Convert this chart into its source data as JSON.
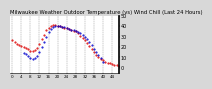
{
  "title": "Milwaukee Weather Outdoor Temperature (vs) Wind Chill (Last 24 Hours)",
  "title_fontsize": 3.8,
  "background_color": "#d8d8d8",
  "plot_bg_color": "#ffffff",
  "grid_color": "#888888",
  "temp_color": "#dd0000",
  "windchill_color": "#0000cc",
  "temp_x": [
    0,
    1,
    2,
    3,
    4,
    5,
    6,
    7,
    8,
    9,
    10,
    11,
    12,
    13,
    14,
    15,
    16,
    17,
    18,
    19,
    20,
    21,
    22,
    23,
    24,
    25,
    26,
    27,
    28,
    29,
    30,
    31,
    32,
    33,
    34,
    35,
    36,
    37,
    38,
    39,
    40,
    41,
    42,
    43,
    44,
    45,
    46,
    47
  ],
  "temp_y": [
    27,
    25,
    23,
    22,
    21,
    20,
    19,
    18,
    16,
    16,
    17,
    19,
    23,
    28,
    32,
    36,
    38,
    40,
    41,
    41,
    40,
    40,
    39,
    38,
    38,
    37,
    36,
    35,
    35,
    33,
    31,
    29,
    27,
    24,
    21,
    18,
    15,
    12,
    10,
    8,
    7,
    6,
    5,
    5,
    4,
    3,
    3,
    2
  ],
  "wc_x": [
    5,
    6,
    7,
    8,
    9,
    10,
    11,
    12,
    13,
    14,
    15,
    16,
    17,
    18,
    19,
    20,
    21,
    22,
    23,
    24,
    25,
    26,
    27,
    28,
    29,
    30,
    31,
    32,
    33,
    34,
    35,
    36,
    37,
    38,
    39,
    40
  ],
  "wc_y": [
    14,
    13,
    11,
    9,
    8,
    9,
    11,
    15,
    20,
    25,
    30,
    34,
    37,
    39,
    40,
    40,
    40,
    39,
    39,
    38,
    37,
    36,
    36,
    35,
    34,
    33,
    32,
    30,
    28,
    25,
    22,
    18,
    15,
    12,
    9,
    6
  ],
  "ylim": [
    -5,
    50
  ],
  "ytick_vals": [
    0,
    10,
    20,
    30,
    40,
    50
  ],
  "ytick_labels": [
    "0",
    "10",
    "20",
    "30",
    "40",
    "50"
  ],
  "ylabel_fontsize": 3.5,
  "xlabel_fontsize": 3.0,
  "vgrid_positions": [
    0,
    4,
    8,
    12,
    16,
    20,
    24,
    28,
    32,
    36,
    40,
    44
  ],
  "marker_size": 1.0,
  "xtick_positions": [
    0,
    4,
    8,
    12,
    16,
    20,
    24,
    28,
    32,
    36,
    40,
    44
  ],
  "xtick_labels": [
    "0",
    "4",
    "8",
    "12",
    "16",
    "20",
    "24",
    "28",
    "32",
    "36",
    "40",
    "44"
  ]
}
